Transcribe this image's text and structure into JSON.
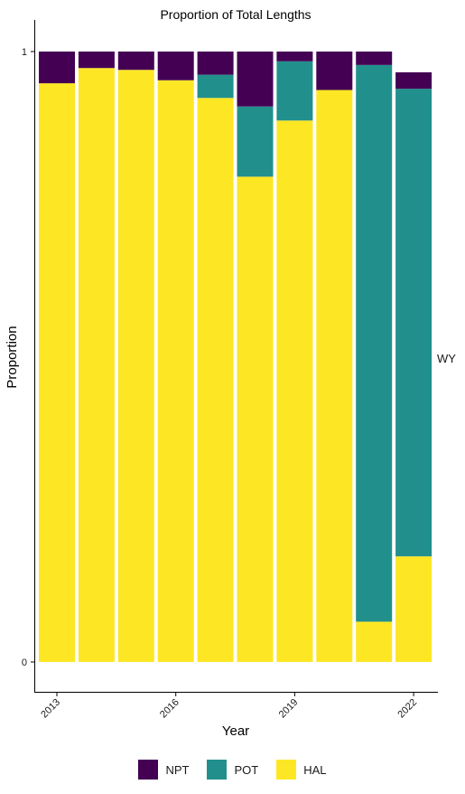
{
  "chart_data": {
    "type": "bar",
    "stacked": true,
    "title": "Proportion of Total Lengths",
    "xlabel": "Year",
    "ylabel": "Proportion",
    "facet_label": "WY",
    "x": [
      2013,
      2014,
      2015,
      2016,
      2017,
      2018,
      2019,
      2020,
      2021,
      2022
    ],
    "x_tick_labels": [
      "2013",
      "2016",
      "2019",
      "2022"
    ],
    "x_tick_values": [
      2013,
      2016,
      2019,
      2022
    ],
    "y_tick_labels": [
      "0",
      "1"
    ],
    "y_tick_values": [
      0,
      1
    ],
    "ylim": [
      0,
      1
    ],
    "grid": false,
    "legend_position": "bottom",
    "stack_order_bottom_to_top": [
      "HAL",
      "POT",
      "NPT"
    ],
    "series": [
      {
        "name": "NPT",
        "color": "#440154",
        "values": [
          0.052,
          0.027,
          0.03,
          0.047,
          0.038,
          0.09,
          0.016,
          0.063,
          0.022,
          0.027
        ]
      },
      {
        "name": "POT",
        "color": "#21908C",
        "values": [
          0.0,
          0.0,
          0.0,
          0.0,
          0.038,
          0.115,
          0.097,
          0.0,
          0.912,
          0.766
        ]
      },
      {
        "name": "HAL",
        "color": "#FDE725",
        "values": [
          0.948,
          0.973,
          0.97,
          0.953,
          0.924,
          0.795,
          0.887,
          0.937,
          0.066,
          0.173
        ]
      }
    ]
  },
  "legend": {
    "items": [
      {
        "label": "NPT",
        "color": "#440154"
      },
      {
        "label": "POT",
        "color": "#21908C"
      },
      {
        "label": "HAL",
        "color": "#FDE725"
      }
    ]
  }
}
